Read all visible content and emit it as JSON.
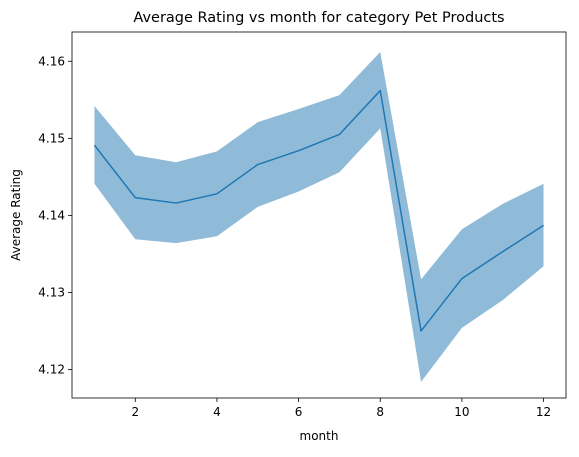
{
  "chart_data": {
    "type": "line",
    "title": "Average Rating vs month for category Pet Products",
    "xlabel": "month",
    "ylabel": "Average Rating",
    "xlim": [
      0.45,
      12.55
    ],
    "ylim": [
      4.1163,
      4.1638
    ],
    "x_ticks": [
      2,
      4,
      6,
      8,
      10,
      12
    ],
    "y_ticks": [
      4.12,
      4.13,
      4.14,
      4.15,
      4.16
    ],
    "y_tick_labels": [
      "4.12",
      "4.13",
      "4.14",
      "4.15",
      "4.16"
    ],
    "grid": false,
    "legend": "none",
    "series": [
      {
        "x": [
          1,
          2,
          3,
          4,
          5,
          6,
          7,
          8,
          9,
          10,
          11,
          12
        ],
        "values": [
          4.1491,
          4.1423,
          4.1416,
          4.1428,
          4.1466,
          4.1484,
          4.1505,
          4.1562,
          4.125,
          4.1318,
          4.1353,
          4.1387
        ],
        "band_upper": [
          4.1542,
          4.1478,
          4.1469,
          4.1483,
          4.1521,
          4.1538,
          4.1556,
          4.1612,
          4.1317,
          4.1382,
          4.1415,
          4.1441
        ],
        "band_lower": [
          4.1441,
          4.1369,
          4.1364,
          4.1373,
          4.1411,
          4.1431,
          4.1456,
          4.1513,
          4.1184,
          4.1254,
          4.129,
          4.1334
        ],
        "line_color": "#1f77b4",
        "band_color": "#8fbbd9"
      }
    ]
  }
}
